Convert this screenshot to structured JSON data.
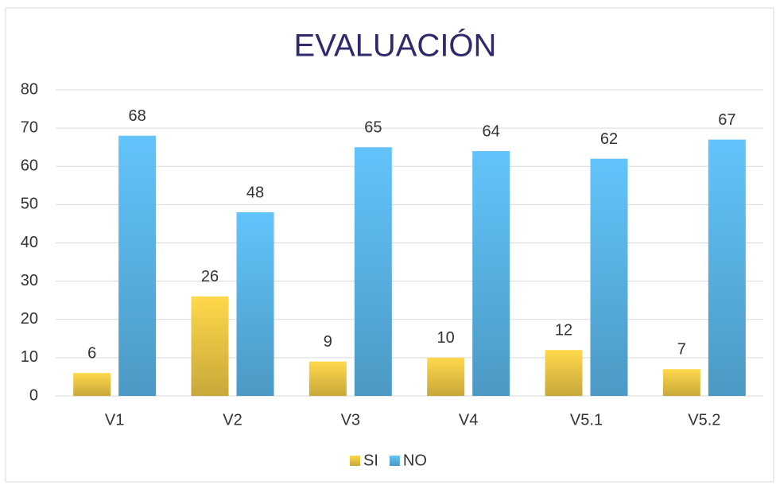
{
  "chart_data": {
    "type": "bar",
    "title": "EVALUACIÓN",
    "categories": [
      "V1",
      "V2",
      "V3",
      "V4",
      "V5.1",
      "V5.2"
    ],
    "series": [
      {
        "name": "SI",
        "color": "#ffd84a",
        "values": [
          6,
          26,
          9,
          10,
          12,
          7
        ]
      },
      {
        "name": "NO",
        "color": "#62c4fb",
        "values": [
          68,
          48,
          65,
          64,
          62,
          67
        ]
      }
    ],
    "ylim": [
      0,
      80
    ],
    "yticks": [
      0,
      10,
      20,
      30,
      40,
      50,
      60,
      70,
      80
    ],
    "grid": true,
    "legend": "bottom"
  }
}
